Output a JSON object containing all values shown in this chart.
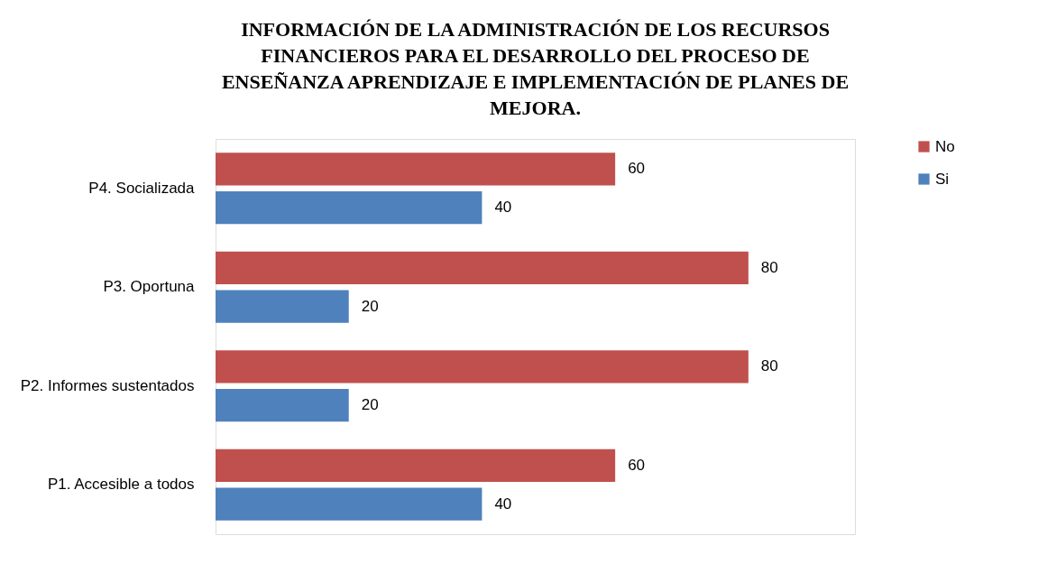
{
  "chart_data": {
    "type": "bar",
    "orientation": "horizontal",
    "title": "INFORMACIÓN DE LA ADMINISTRACIÓN DE LOS RECURSOS FINANCIEROS PARA EL DESARROLLO DEL PROCESO DE ENSEÑANZA APRENDIZAJE E IMPLEMENTACIÓN DE PLANES DE MEJORA.",
    "categories": [
      "P4. Socializada",
      "P3. Oportuna",
      "P2. Informes sustentados",
      "P1. Accesible a todos"
    ],
    "series": [
      {
        "name": "No",
        "color": "#c0504d",
        "values": [
          60,
          80,
          80,
          60
        ]
      },
      {
        "name": "Si",
        "color": "#4f81bd",
        "values": [
          40,
          20,
          20,
          40
        ]
      }
    ],
    "xlim": [
      0,
      96
    ],
    "data_labels": true,
    "legend": "right",
    "tick_labels": "y"
  }
}
